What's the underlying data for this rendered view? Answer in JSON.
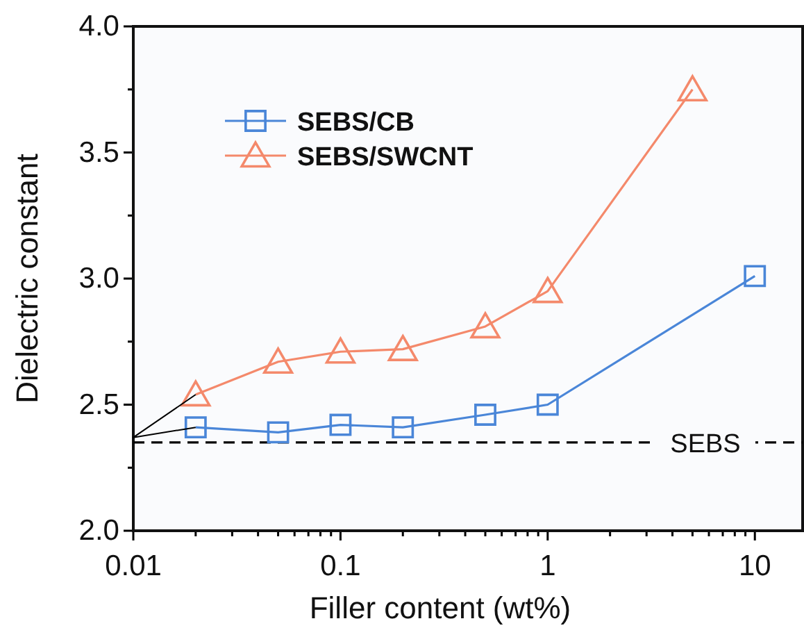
{
  "chart_data": {
    "type": "line",
    "xlabel": "Filler content (wt%)",
    "ylabel": "Dielectric constant",
    "log": "x",
    "xlim": [
      0.01,
      17
    ],
    "ylim": [
      2.0,
      4.0
    ],
    "xticks": [
      0.01,
      {
        "value": 0.02,
        "label": null
      },
      {
        "value": 0.03,
        "label": null
      },
      {
        "value": 0.04,
        "label": null
      },
      {
        "value": 0.05,
        "label": null
      },
      {
        "value": 0.06,
        "label": null
      },
      {
        "value": 0.07,
        "label": null
      },
      {
        "value": 0.08,
        "label": null
      },
      {
        "value": 0.09,
        "label": null
      },
      0.1,
      {
        "value": 0.2,
        "label": null
      },
      {
        "value": 0.3,
        "label": null
      },
      {
        "value": 0.4,
        "label": null
      },
      {
        "value": 0.5,
        "label": null
      },
      {
        "value": 0.6,
        "label": null
      },
      {
        "value": 0.7,
        "label": null
      },
      {
        "value": 0.8,
        "label": null
      },
      {
        "value": 0.9,
        "label": null
      },
      1,
      {
        "value": 2,
        "label": null
      },
      {
        "value": 3,
        "label": null
      },
      {
        "value": 4,
        "label": null
      },
      {
        "value": 5,
        "label": null
      },
      {
        "value": 6,
        "label": null
      },
      {
        "value": 7,
        "label": null
      },
      {
        "value": 8,
        "label": null
      },
      {
        "value": 9,
        "label": null
      },
      10
    ],
    "yticks": [
      {
        "value": 2.0,
        "label": "2.0"
      },
      {
        "value": 2.25,
        "label": null
      },
      {
        "value": 2.5,
        "label": "2.5"
      },
      {
        "value": 2.75,
        "label": null
      },
      {
        "value": 3.0,
        "label": "3.0"
      },
      {
        "value": 3.25,
        "label": null
      },
      {
        "value": 3.5,
        "label": "3.5"
      },
      {
        "value": 3.75,
        "label": null
      },
      {
        "value": 4.0,
        "label": "4.0"
      }
    ],
    "legend": "top left",
    "grid": false,
    "line_style": "solid",
    "series": [
      {
        "name": "SEBS/CB",
        "color": "#4a86d8",
        "marker": "square",
        "x": [
          0.02,
          0.05,
          0.1,
          0.2,
          0.5,
          1,
          10
        ],
        "values": [
          2.41,
          2.39,
          2.42,
          2.41,
          2.46,
          2.5,
          3.01
        ]
      },
      {
        "name": "SEBS/SWCNT",
        "color": "#f4896b",
        "marker": "triangle",
        "x": [
          0.02,
          0.05,
          0.1,
          0.2,
          0.5,
          1,
          5
        ],
        "values": [
          2.54,
          2.67,
          2.71,
          2.72,
          2.81,
          2.95,
          3.75
        ]
      },
      {
        "color": "#000000",
        "marker": "none",
        "x": [
          0.02,
          0.01,
          0.02
        ],
        "values": [
          2.41,
          2.37,
          2.54
        ]
      }
    ],
    "ref_lines": [
      {
        "axis": "y",
        "value": 2.35,
        "label": "SEBS",
        "color": "#000000",
        "line_style": "dashed"
      }
    ]
  }
}
